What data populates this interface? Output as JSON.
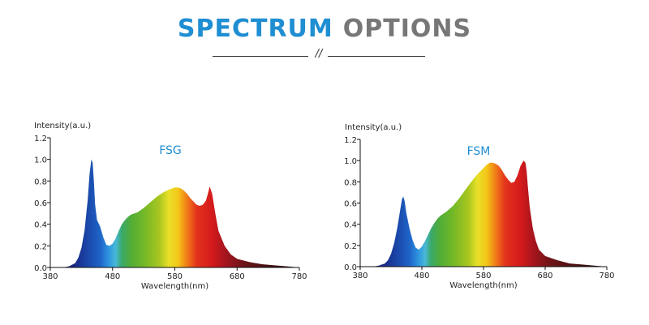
{
  "header": {
    "title_part1": "SPECTRUM",
    "title_part2": "OPTIONS",
    "divider_mark": "//"
  },
  "chart_data": [
    {
      "type": "area",
      "title": "FSG",
      "title_color": "#1f8ed2",
      "ylabel": "Intensity(a.u.)",
      "xlabel": "Wavelength(nm)",
      "xlim": [
        380,
        780
      ],
      "ylim": [
        0,
        1.2
      ],
      "x_ticks": [
        380,
        480,
        580,
        680,
        780
      ],
      "y_ticks": [
        "0.0",
        "0.2",
        "0.4",
        "0.6",
        "0.8",
        "1.0",
        "1.2"
      ],
      "grid": false,
      "series": [
        {
          "x": [
            380,
            400,
            410,
            420,
            425,
            430,
            435,
            440,
            443,
            446,
            448,
            450,
            452,
            455,
            460,
            465,
            470,
            475,
            480,
            485,
            490,
            495,
            500,
            505,
            510,
            520,
            530,
            540,
            550,
            560,
            570,
            580,
            585,
            590,
            595,
            600,
            605,
            610,
            615,
            620,
            625,
            630,
            633,
            636,
            640,
            645,
            650,
            660,
            670,
            680,
            700,
            720,
            740,
            760,
            780
          ],
          "y": [
            0,
            0,
            0.01,
            0.04,
            0.09,
            0.18,
            0.34,
            0.62,
            0.86,
            1.0,
            0.97,
            0.8,
            0.58,
            0.44,
            0.38,
            0.28,
            0.21,
            0.2,
            0.22,
            0.27,
            0.34,
            0.4,
            0.44,
            0.47,
            0.49,
            0.51,
            0.55,
            0.6,
            0.65,
            0.69,
            0.72,
            0.74,
            0.74,
            0.73,
            0.71,
            0.68,
            0.64,
            0.61,
            0.58,
            0.57,
            0.58,
            0.62,
            0.68,
            0.75,
            0.68,
            0.5,
            0.34,
            0.2,
            0.12,
            0.08,
            0.05,
            0.03,
            0.02,
            0.01,
            0
          ]
        }
      ]
    },
    {
      "type": "area",
      "title": "FSM",
      "title_color": "#1f8ed2",
      "ylabel": "Intensity(a.u.)",
      "xlabel": "Wavelength(nm)",
      "xlim": [
        380,
        780
      ],
      "ylim": [
        0,
        1.2
      ],
      "x_ticks": [
        380,
        480,
        580,
        680,
        780
      ],
      "y_ticks": [
        "0.0",
        "0.2",
        "0.4",
        "0.6",
        "0.8",
        "1.0",
        "1.2"
      ],
      "grid": false,
      "series": [
        {
          "x": [
            380,
            400,
            410,
            420,
            425,
            430,
            435,
            440,
            445,
            448,
            450,
            452,
            455,
            460,
            465,
            470,
            475,
            480,
            485,
            490,
            495,
            500,
            505,
            510,
            520,
            530,
            540,
            550,
            560,
            570,
            580,
            585,
            590,
            595,
            600,
            605,
            610,
            615,
            620,
            625,
            630,
            635,
            640,
            645,
            648,
            650,
            652,
            655,
            660,
            665,
            670,
            680,
            700,
            720,
            740,
            760,
            780
          ],
          "y": [
            0,
            0,
            0.01,
            0.03,
            0.06,
            0.12,
            0.22,
            0.36,
            0.54,
            0.64,
            0.66,
            0.62,
            0.5,
            0.36,
            0.25,
            0.18,
            0.16,
            0.19,
            0.24,
            0.3,
            0.36,
            0.41,
            0.45,
            0.48,
            0.52,
            0.57,
            0.64,
            0.72,
            0.8,
            0.87,
            0.93,
            0.96,
            0.98,
            0.98,
            0.97,
            0.95,
            0.91,
            0.86,
            0.82,
            0.79,
            0.8,
            0.86,
            0.95,
            1.0,
            0.98,
            0.9,
            0.75,
            0.56,
            0.36,
            0.24,
            0.16,
            0.1,
            0.06,
            0.03,
            0.02,
            0.01,
            0
          ]
        }
      ]
    }
  ]
}
